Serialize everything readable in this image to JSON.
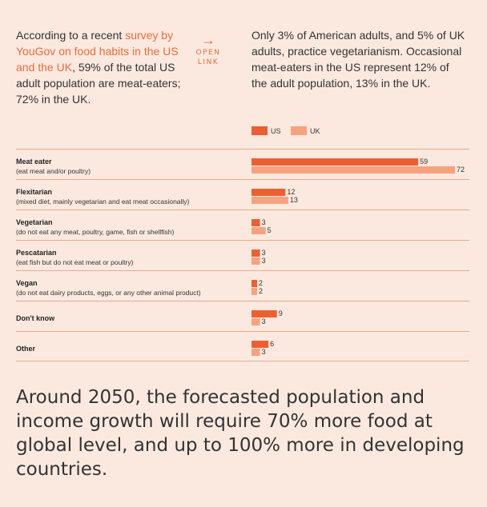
{
  "intro": {
    "text1": "According to a recent ",
    "link1": "survey by YouGov on food habits in the US and the UK",
    "text2": ", 59% of the total US adult population are meat-eaters; 72% in the UK."
  },
  "open_link": {
    "arrow": "→",
    "label": "OPEN LINK"
  },
  "intro_right": "Only 3% of American adults, and 5% of UK adults, practice vegetarianism. Occasional meat-eaters in the US represent 12% of the adult population, 13% in the UK.",
  "legend": {
    "us_label": "US",
    "uk_label": "UK"
  },
  "colors": {
    "us": "#ec5f33",
    "uk": "#f5a37f",
    "divider": "#e8a888",
    "background": "#fbe9df"
  },
  "chart_data": {
    "type": "bar",
    "orientation": "horizontal",
    "series": [
      {
        "name": "US",
        "values": [
          59,
          12,
          3,
          3,
          2,
          9,
          6
        ]
      },
      {
        "name": "UK",
        "values": [
          72,
          13,
          5,
          3,
          2,
          3,
          3
        ]
      }
    ],
    "categories": [
      {
        "title": "Meat eater",
        "subtitle": "(eat meat and/or poultry)"
      },
      {
        "title": "Flexitarian",
        "subtitle": "(mixed diet, mainly vegetarian and eat meat occasionally)"
      },
      {
        "title": "Vegetarian",
        "subtitle": "(do not eat any meat, poultry, game, fish or shellfish)"
      },
      {
        "title": "Pescatarian",
        "subtitle": "(eat fish but do not eat meat or poultry)"
      },
      {
        "title": "Vegan",
        "subtitle": "(do not eat dairy products, eggs, or any other animal product)"
      },
      {
        "title": "Don't know",
        "subtitle": ""
      },
      {
        "title": "Other",
        "subtitle": ""
      }
    ],
    "xlim": [
      0,
      72
    ],
    "grid": false,
    "legend_position": "top"
  },
  "closing": "Around 2050, the forecasted population and income growth will require 70% more food at global level, and up to 100% more in developing countries."
}
